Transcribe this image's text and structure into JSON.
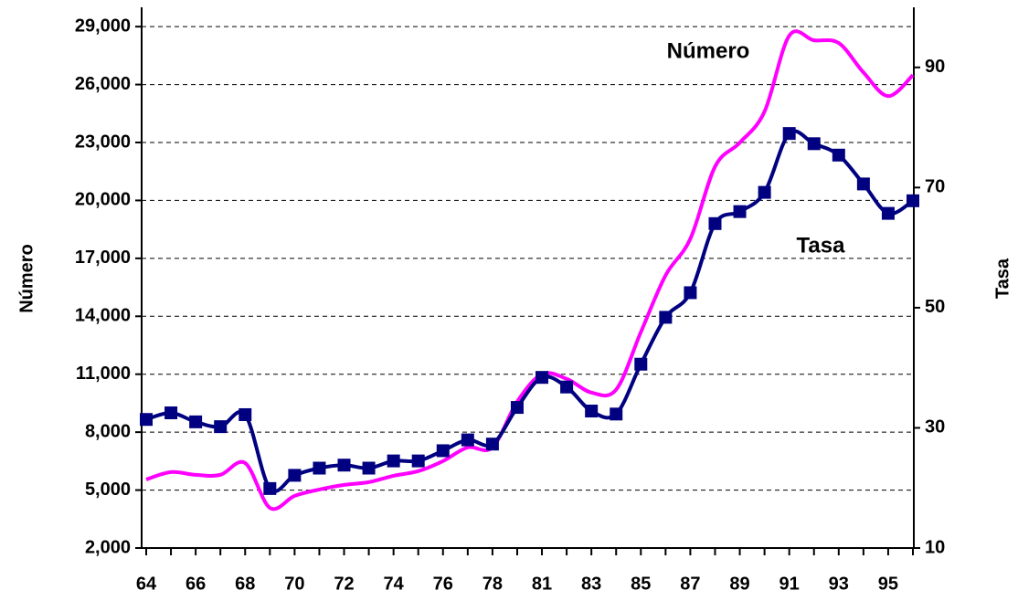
{
  "chart_data": {
    "type": "line",
    "categories": [
      "64",
      null,
      "66",
      null,
      "68",
      null,
      "70",
      null,
      "72",
      null,
      "74",
      null,
      "76",
      null,
      "78",
      null,
      "81",
      null,
      "83",
      null,
      "85",
      null,
      "87",
      null,
      "89",
      null,
      "91",
      null,
      "93",
      null,
      "95",
      null
    ],
    "series": [
      {
        "name": "Número",
        "color": "#ff00ff",
        "axis": "y",
        "marker": false,
        "values": [
          5550,
          5930,
          5790,
          5790,
          6400,
          4080,
          4700,
          5030,
          5270,
          5410,
          5740,
          5980,
          6500,
          7210,
          7210,
          9580,
          11000,
          10760,
          10050,
          10200,
          13180,
          16120,
          18010,
          21750,
          22990,
          24600,
          28530,
          28290,
          28150,
          26630,
          25400,
          26490
        ]
      },
      {
        "name": "Tasa",
        "color": "#000080",
        "axis": "y2",
        "marker": true,
        "values": [
          31.4,
          32.5,
          31,
          30.2,
          32.2,
          19.9,
          22.1,
          23.3,
          23.8,
          23.3,
          24.5,
          24.5,
          26.2,
          28,
          27.3,
          33.4,
          38.4,
          36.8,
          32.8,
          32.3,
          40.6,
          48.4,
          52.5,
          64,
          66,
          69.2,
          79,
          77.3,
          75.4,
          70.6,
          65.7,
          67.8
        ]
      }
    ],
    "y_label": "Número",
    "y2_label": "Tasa",
    "ylim": [
      2000,
      30000
    ],
    "yticks": [
      {
        "value": 2000,
        "label": "2,000"
      },
      {
        "value": 5000,
        "label": "5,000"
      },
      {
        "value": 8000,
        "label": "8,000"
      },
      {
        "value": 11000,
        "label": "11,000"
      },
      {
        "value": 14000,
        "label": "14,000"
      },
      {
        "value": 17000,
        "label": "17,000"
      },
      {
        "value": 20000,
        "label": "20,000"
      },
      {
        "value": 23000,
        "label": "23,000"
      },
      {
        "value": 26000,
        "label": "26,000"
      },
      {
        "value": 29000,
        "label": "29,000"
      }
    ],
    "y2lim": [
      10,
      100
    ],
    "y2ticks": [
      10,
      30,
      50,
      70,
      90
    ],
    "grid": true
  }
}
